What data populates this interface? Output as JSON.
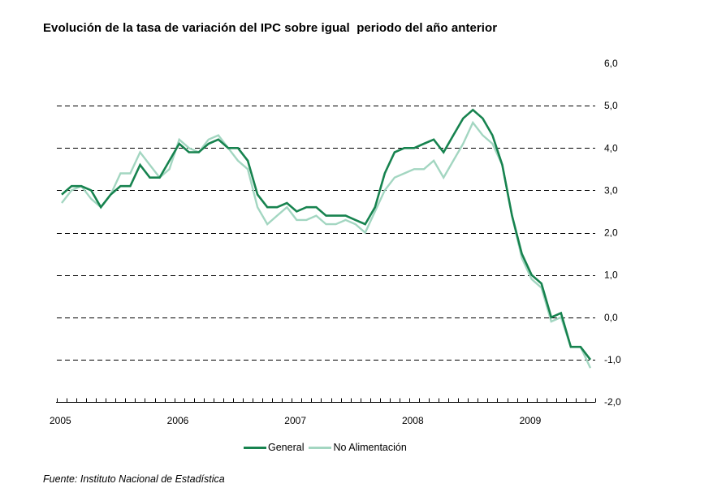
{
  "chart_data": {
    "type": "line",
    "title": "Evolución de la tasa de variación del IPC sobre igual  periodo del año anterior",
    "xlabel": "",
    "ylabel": "",
    "x_tick_labels": [
      "2005",
      "2006",
      "2007",
      "2008",
      "2009"
    ],
    "y_tick_labels": [
      "6,0",
      "5,0",
      "4,0",
      "3,0",
      "2,0",
      "1,0",
      "0,0",
      "-1,0",
      "-2,0"
    ],
    "y_ticks": [
      6,
      5,
      4,
      3,
      2,
      1,
      0,
      -1,
      -2
    ],
    "ylim": [
      -2,
      6
    ],
    "x_range": [
      "2005-01",
      "2009-07"
    ],
    "grid": "horizontal-dashed",
    "y_axis_side": "right",
    "legend_position": "bottom-center",
    "x": [
      "2005-01",
      "2005-02",
      "2005-03",
      "2005-04",
      "2005-05",
      "2005-06",
      "2005-07",
      "2005-08",
      "2005-09",
      "2005-10",
      "2005-11",
      "2005-12",
      "2006-01",
      "2006-02",
      "2006-03",
      "2006-04",
      "2006-05",
      "2006-06",
      "2006-07",
      "2006-08",
      "2006-09",
      "2006-10",
      "2006-11",
      "2006-12",
      "2007-01",
      "2007-02",
      "2007-03",
      "2007-04",
      "2007-05",
      "2007-06",
      "2007-07",
      "2007-08",
      "2007-09",
      "2007-10",
      "2007-11",
      "2007-12",
      "2008-01",
      "2008-02",
      "2008-03",
      "2008-04",
      "2008-05",
      "2008-06",
      "2008-07",
      "2008-08",
      "2008-09",
      "2008-10",
      "2008-11",
      "2008-12",
      "2009-01",
      "2009-02",
      "2009-03",
      "2009-04",
      "2009-05",
      "2009-06",
      "2009-07"
    ],
    "series": [
      {
        "name": "General",
        "color": "#17834f",
        "values": [
          2.9,
          3.1,
          3.1,
          3.0,
          2.6,
          2.9,
          3.1,
          3.1,
          3.6,
          3.3,
          3.3,
          3.7,
          4.1,
          3.9,
          3.9,
          4.1,
          4.2,
          4.0,
          4.0,
          3.7,
          2.9,
          2.6,
          2.6,
          2.7,
          2.5,
          2.6,
          2.6,
          2.4,
          2.4,
          2.4,
          2.3,
          2.2,
          2.6,
          3.4,
          3.9,
          4.0,
          4.0,
          4.1,
          4.2,
          3.9,
          4.3,
          4.7,
          4.9,
          4.7,
          4.3,
          3.6,
          2.4,
          1.5,
          1.0,
          0.8,
          0.0,
          0.1,
          -0.7,
          -0.7,
          -1.0
        ]
      },
      {
        "name": "No Alimentación",
        "color": "#a3d6c1",
        "values": [
          2.7,
          3.0,
          3.1,
          2.8,
          2.6,
          2.9,
          3.4,
          3.4,
          3.9,
          3.6,
          3.3,
          3.5,
          4.2,
          4.0,
          3.9,
          4.2,
          4.3,
          4.0,
          3.7,
          3.5,
          2.6,
          2.2,
          2.4,
          2.6,
          2.3,
          2.3,
          2.4,
          2.2,
          2.2,
          2.3,
          2.2,
          2.0,
          2.5,
          3.0,
          3.3,
          3.4,
          3.5,
          3.5,
          3.7,
          3.3,
          3.7,
          4.1,
          4.6,
          4.3,
          4.1,
          3.6,
          2.4,
          1.4,
          0.9,
          0.7,
          -0.1,
          0.0,
          -0.7,
          -0.7,
          -1.2
        ]
      }
    ]
  },
  "legend": {
    "items": [
      {
        "label": "General",
        "color": "#17834f"
      },
      {
        "label": "No Alimentación",
        "color": "#a3d6c1"
      }
    ]
  },
  "source_note": "Fuente: Instituto Nacional de Estadística"
}
